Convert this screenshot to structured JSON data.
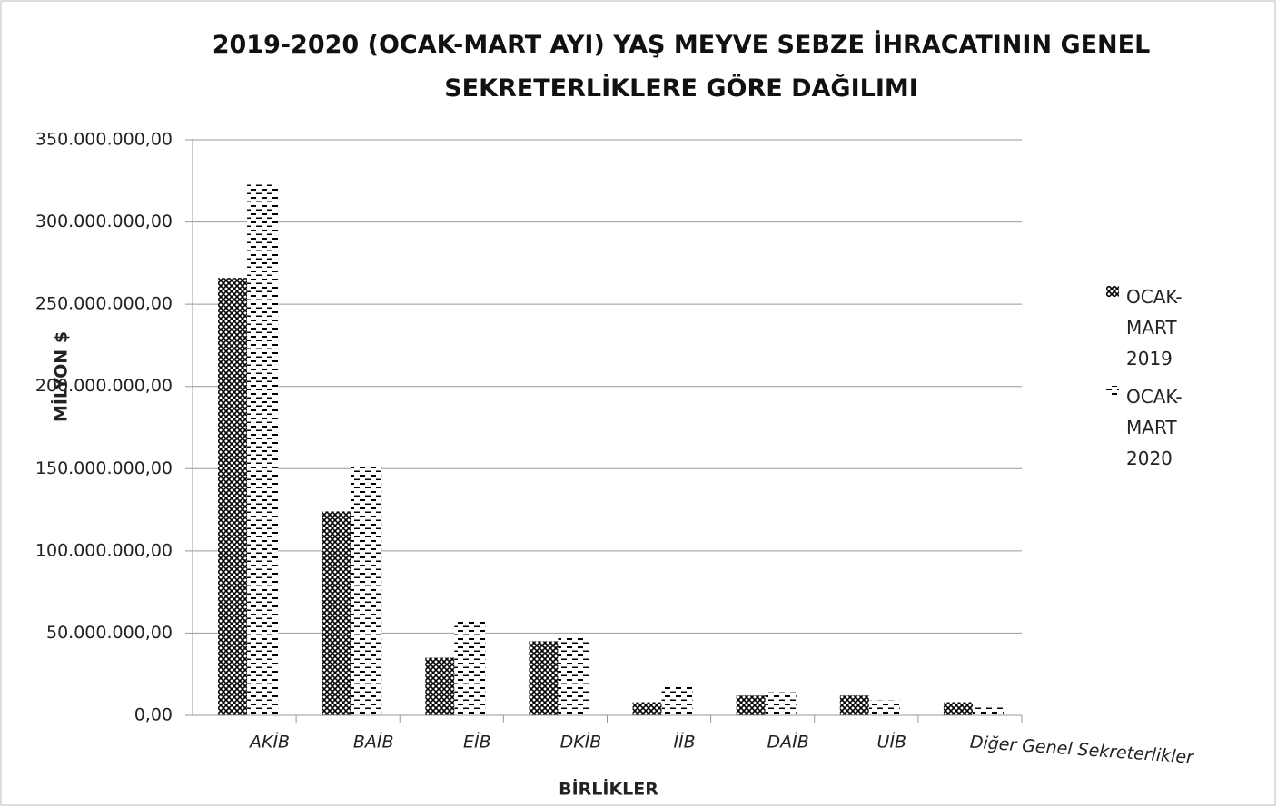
{
  "chart_data": {
    "type": "bar",
    "title": "2019-2020 (OCAK-MART AYI) YAŞ MEYVE SEBZE İHRACATININ GENEL SEKRETERLİKLERE GÖRE DAĞILIMI",
    "x_label": "BİRLİKLER",
    "y_label": "MİLYON $",
    "categories": [
      "AKİB",
      "BAİB",
      "EİB",
      "DKİB",
      "İİB",
      "DAİB",
      "UİB",
      "Diğer Genel Sekreterlikler"
    ],
    "series": [
      {
        "name": "OCAK-MART 2019",
        "color": "#000000",
        "pattern": "crosshatch",
        "values": [
          266000000,
          124000000,
          35000000,
          45000000,
          8000000,
          12000000,
          12000000,
          8000000
        ]
      },
      {
        "name": "OCAK-MART 2020",
        "color": "#000000",
        "pattern": "dashes",
        "values": [
          324000000,
          151000000,
          57000000,
          49000000,
          18000000,
          14000000,
          9000000,
          5000000
        ]
      }
    ],
    "ylim": [
      0,
      350000000
    ],
    "yticks": [
      {
        "value": 0,
        "label": "0,00"
      },
      {
        "value": 50000000,
        "label": "50.000.000,00"
      },
      {
        "value": 100000000,
        "label": "100.000.000,00"
      },
      {
        "value": 150000000,
        "label": "150.000.000,00"
      },
      {
        "value": 200000000,
        "label": "200.000.000,00"
      },
      {
        "value": 250000000,
        "label": "250.000.000,00"
      },
      {
        "value": 300000000,
        "label": "300.000.000,00"
      },
      {
        "value": 350000000,
        "label": "350.000.000,00"
      }
    ],
    "grid": true,
    "legend": "right"
  }
}
